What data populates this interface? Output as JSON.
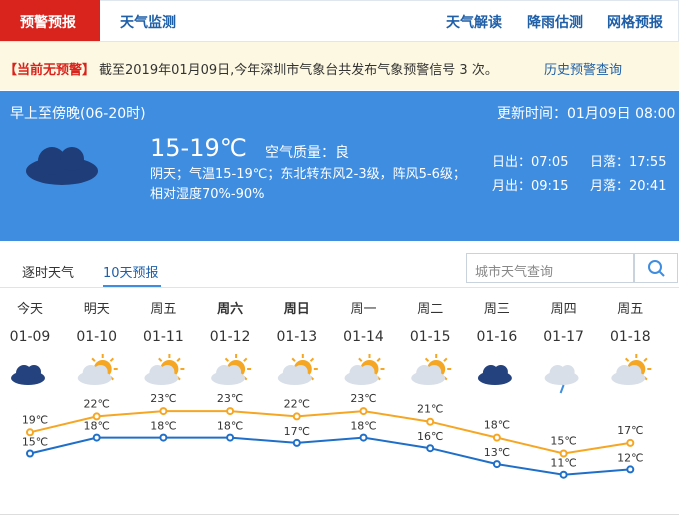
{
  "nav": {
    "active": "预警预报",
    "tabs": [
      "天气监测"
    ],
    "right": [
      "天气解读",
      "降雨估测",
      "网格预报"
    ]
  },
  "warning": {
    "status": "【当前无预警】",
    "text": "截至2019年01月09日,今年深圳市气象台共发布气象预警信号 3 次。",
    "link": "历史预警查询"
  },
  "today": {
    "period": "早上至傍晚(06-20时)",
    "updated": "更新时间：01月09日 08:00",
    "temp": "15-19℃",
    "air": "空气质量：良",
    "desc": "阴天；气温15-19℃；东北转东风2-3级，阵风5-6级；相对湿度70%-90%",
    "sunrise": "日出：07:05",
    "sunset": "日落：17:55",
    "moonrise": "月出：09:15",
    "moonset": "月落：20:41"
  },
  "tabs": [
    "逐时天气",
    "10天预报"
  ],
  "search": "城市天气查询",
  "forecast": {
    "days": [
      "今天",
      "明天",
      "周五",
      "周六",
      "周日",
      "周一",
      "周二",
      "周三",
      "周四",
      "周五"
    ],
    "dates": [
      "01-09",
      "01-10",
      "01-11",
      "01-12",
      "01-13",
      "01-14",
      "01-15",
      "01-16",
      "01-17",
      "01-18"
    ],
    "highs": [
      19,
      22,
      23,
      23,
      22,
      23,
      21,
      18,
      15,
      17
    ],
    "high_labels": [
      "19℃",
      "22℃",
      "23℃",
      "23℃",
      "22℃",
      "23℃",
      "21℃",
      "18℃",
      "15℃",
      "17℃"
    ],
    "lows": [
      15,
      18,
      18,
      18,
      17,
      18,
      16,
      13,
      11,
      12
    ],
    "low_labels": [
      "15℃",
      "18℃",
      "18℃",
      "18℃",
      "17℃",
      "18℃",
      "16℃",
      "13℃",
      "11℃",
      "12℃"
    ]
  }
}
